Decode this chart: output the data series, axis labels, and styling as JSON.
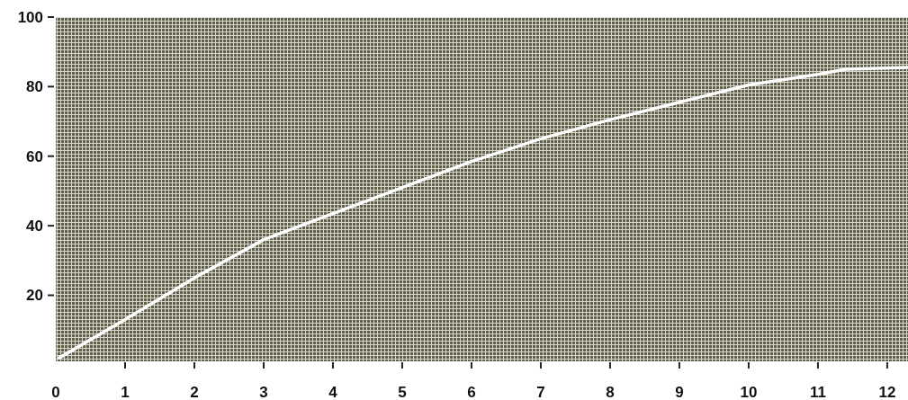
{
  "chart_data": {
    "type": "line",
    "x": [
      0.05,
      1,
      2,
      3,
      4,
      5,
      6,
      7,
      8,
      9,
      10,
      11,
      11.4,
      12.3
    ],
    "series": [
      {
        "color": "#ffffff",
        "values": [
          2,
          13,
          25,
          36,
          43.5,
          51,
          58.5,
          65,
          70.5,
          75.5,
          80.5,
          83.5,
          85,
          85.5
        ]
      }
    ],
    "xlim": [
      0,
      12.3
    ],
    "ylim": [
      1,
      100
    ],
    "xticks": [
      0,
      1,
      2,
      3,
      4,
      5,
      6,
      7,
      8,
      9,
      10,
      11,
      12
    ],
    "yticks": [
      20,
      40,
      60,
      80,
      100
    ],
    "marker": "none",
    "line_style": "solid"
  }
}
